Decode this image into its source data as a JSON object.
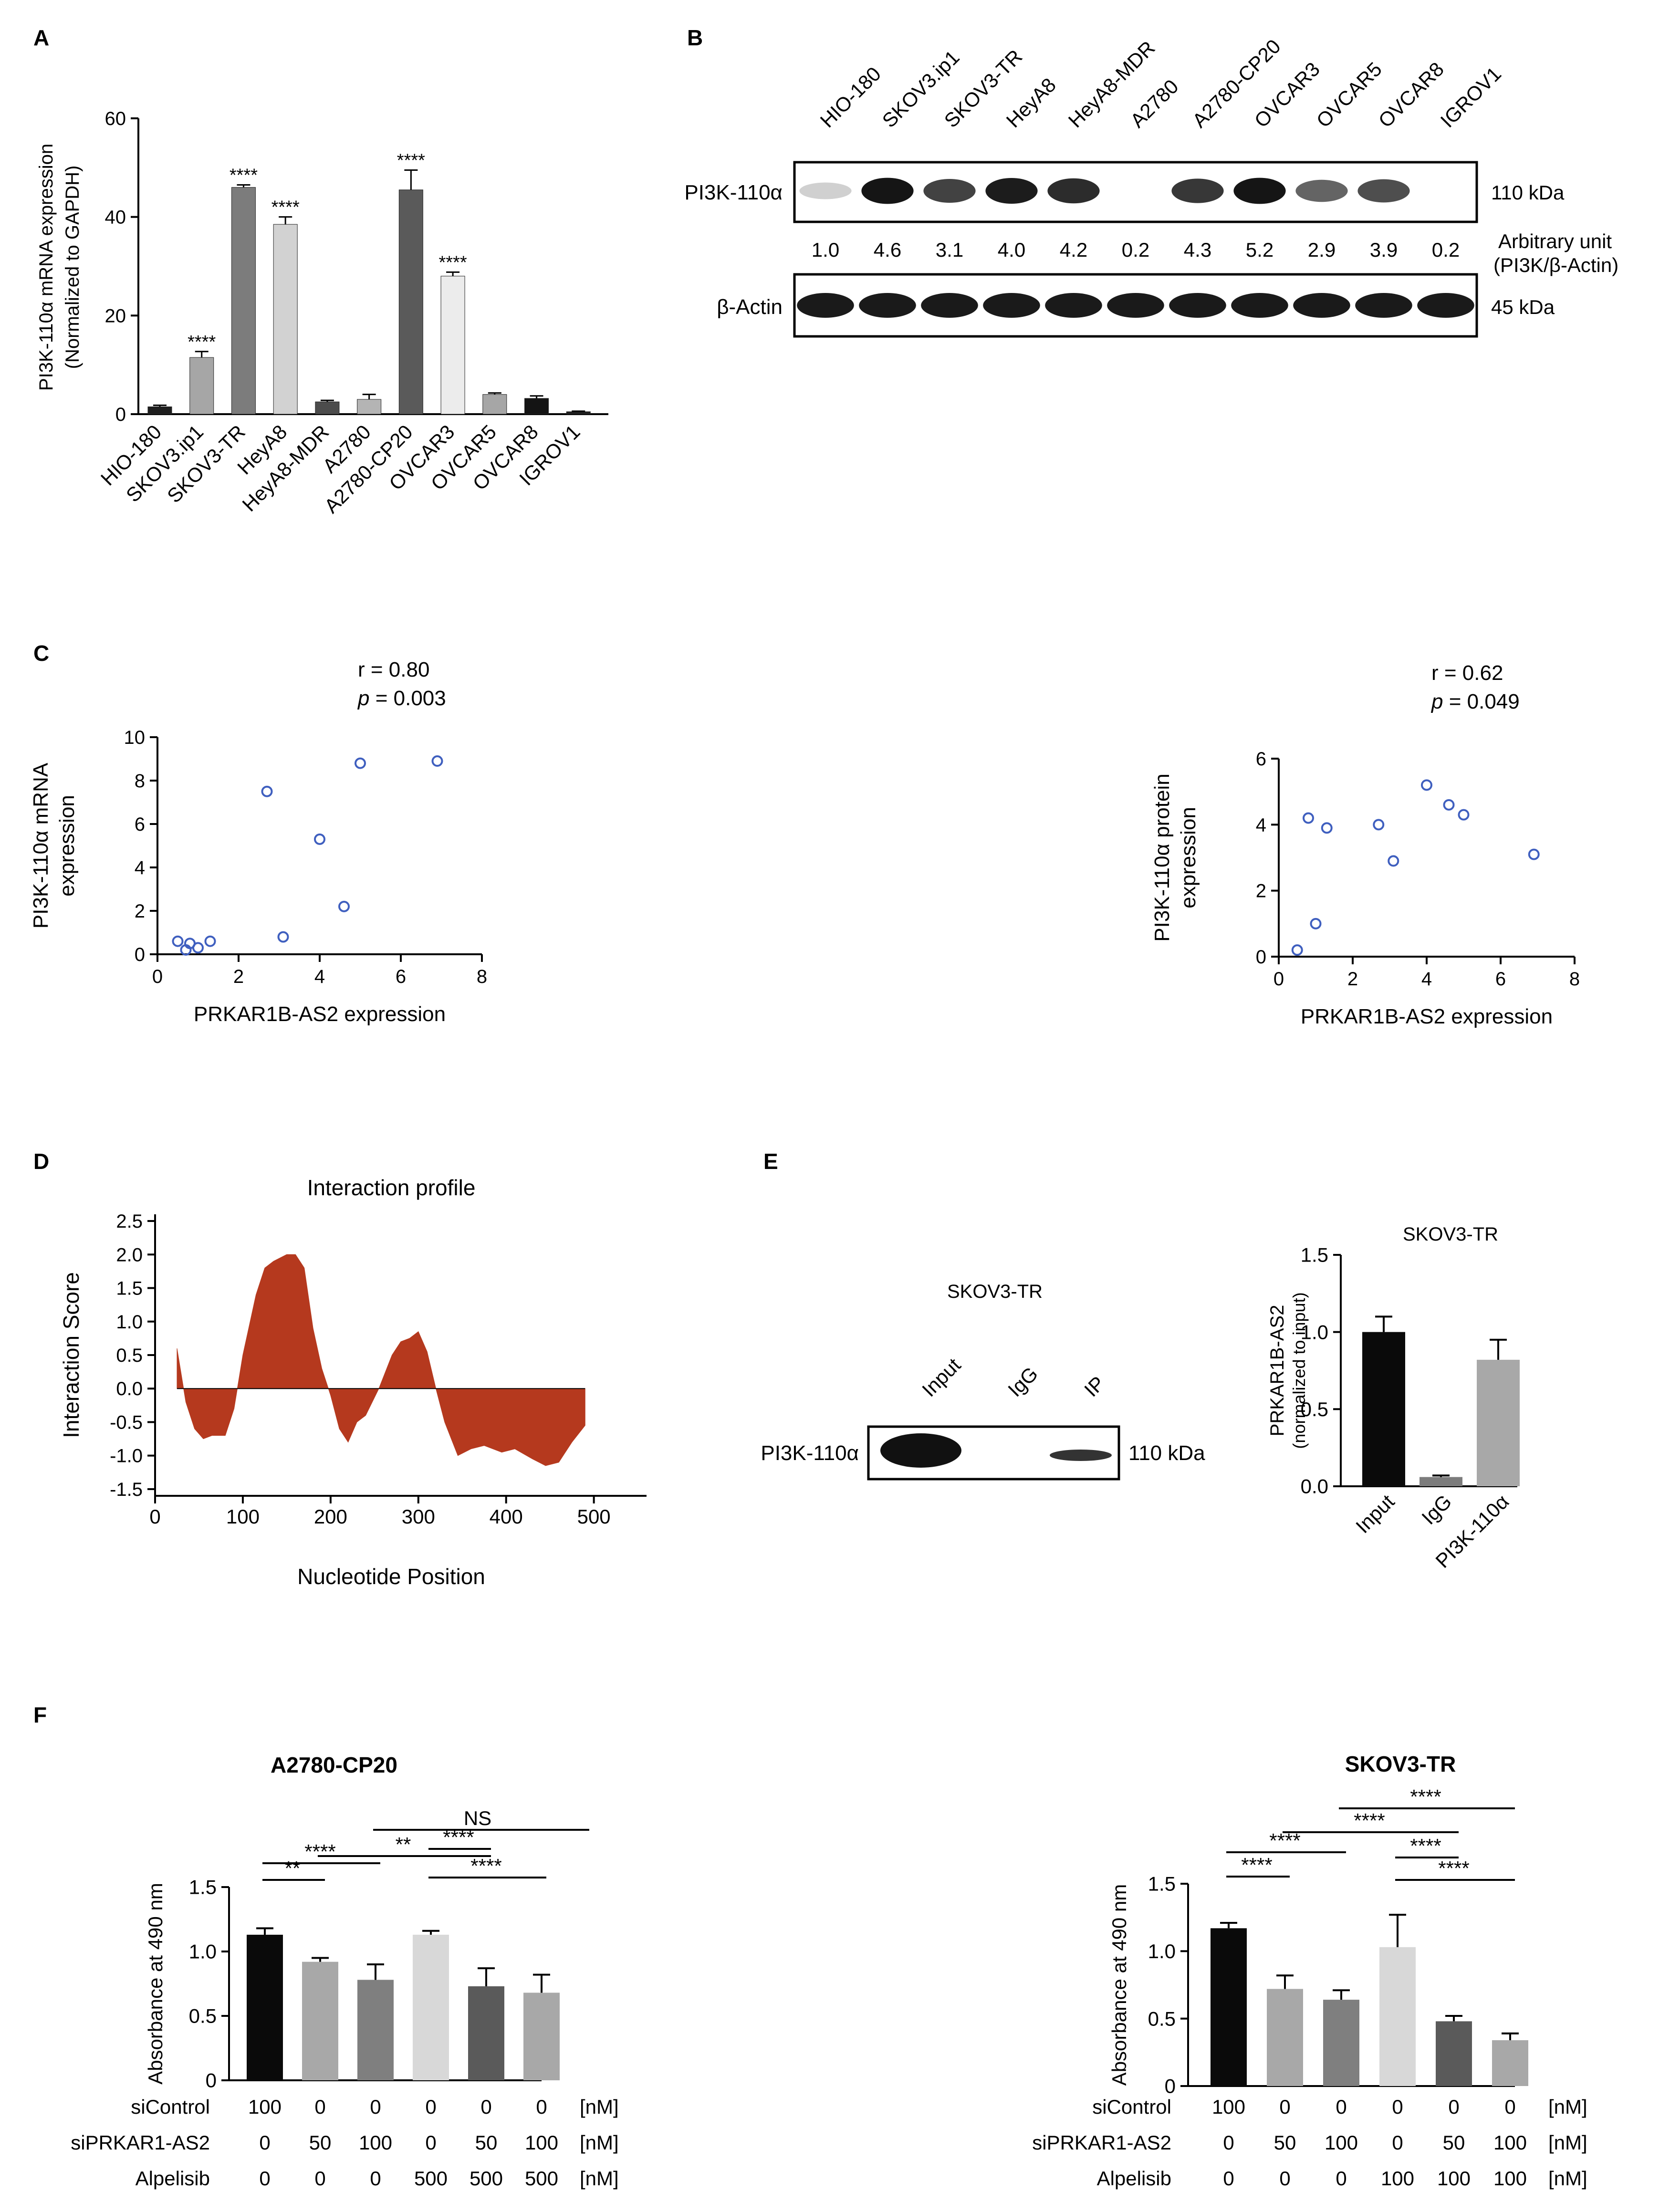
{
  "panels": {
    "A": {
      "letter": "A"
    },
    "B": {
      "letter": "B",
      "row1_label": "PI3K-110α",
      "row2_label": "β-Actin",
      "size1": "110 kDa",
      "size2": "45 kDa",
      "unit_label_1": "Arbitrary unit",
      "unit_label_2": "(PI3K/β-Actin)",
      "lanes": [
        "HIO-180",
        "SKOV3.ip1",
        "SKOV3-TR",
        "HeyA8",
        "HeyA8-MDR",
        "A2780",
        "A2780-CP20",
        "OVCAR3",
        "OVCAR5",
        "OVCAR8",
        "IGROV1"
      ],
      "ratios": [
        "1.0",
        "4.6",
        "3.1",
        "4.0",
        "4.2",
        "0.2",
        "4.3",
        "5.2",
        "2.9",
        "3.9",
        "0.2"
      ],
      "band_intensity": [
        0.12,
        0.95,
        0.75,
        0.92,
        0.85,
        0.0,
        0.8,
        0.95,
        0.6,
        0.7,
        0.0
      ]
    },
    "C": {
      "letter": "C"
    },
    "D": {
      "letter": "D"
    },
    "E": {
      "letter": "E",
      "blot_title": "SKOV3-TR",
      "lanes": [
        "Input",
        "IgG",
        "IP"
      ],
      "row_label": "PI3K-110α",
      "size": "110 kDa"
    },
    "F": {
      "letter": "F",
      "row_labels": [
        "siControl",
        "siPRKAR1-AS2",
        "Alpelisib"
      ],
      "units": "[nM]",
      "left_rows": [
        [
          "100",
          "0",
          "0",
          "0",
          "0",
          "0"
        ],
        [
          "0",
          "50",
          "100",
          "0",
          "50",
          "100"
        ],
        [
          "0",
          "0",
          "0",
          "500",
          "500",
          "500"
        ]
      ],
      "right_rows": [
        [
          "100",
          "0",
          "0",
          "0",
          "0",
          "0"
        ],
        [
          "0",
          "50",
          "100",
          "0",
          "50",
          "100"
        ],
        [
          "0",
          "0",
          "0",
          "100",
          "100",
          "100"
        ]
      ]
    }
  },
  "chart_data": [
    {
      "id": "A",
      "type": "bar",
      "title": "",
      "xlabel": "",
      "ylabel": "PI3K-110α mRNA expression",
      "ylabel2": "(Normalized to GAPDH)",
      "categories": [
        "HIO-180",
        "SKOV3.ip1",
        "SKOV3-TR",
        "HeyA8",
        "HeyA8-MDR",
        "A2780",
        "A2780-CP20",
        "OVCAR3",
        "OVCAR5",
        "OVCAR8",
        "IGROV1"
      ],
      "values": [
        1.5,
        11.5,
        46,
        38.5,
        2.5,
        3,
        45.5,
        28,
        4,
        3.2,
        0.5
      ],
      "errors": [
        0.3,
        1.2,
        0.5,
        1.5,
        0.3,
        1.0,
        4.0,
        0.8,
        0.3,
        0.5,
        0.1
      ],
      "annotations": [
        "",
        "****",
        "****",
        "****",
        "",
        "",
        "****",
        "****",
        "",
        "",
        ""
      ],
      "colors": [
        "#1e1e1e",
        "#a6a6a6",
        "#7c7c7c",
        "#d2d2d2",
        "#4c4c4c",
        "#b4b4b4",
        "#5a5a5a",
        "#ececec",
        "#a6a6a6",
        "#141414",
        "#1e1e1e"
      ],
      "yticks": [
        "0",
        "20",
        "40",
        "60"
      ],
      "ylim": [
        0,
        60
      ]
    },
    {
      "id": "C1",
      "type": "scatter",
      "title": "",
      "annot_r": "r = 0.80",
      "annot_p_label": "p",
      "annot_p_value": " = 0.003",
      "xlabel": "PRKAR1B-AS2 expression",
      "ylabel": "PI3K-110α mRNA",
      "ylabel2": "expression",
      "x": [
        0.5,
        0.7,
        0.8,
        1.0,
        1.3,
        2.7,
        3.1,
        4.0,
        4.6,
        5.0,
        6.9
      ],
      "y": [
        0.6,
        0.2,
        0.5,
        0.3,
        0.6,
        7.5,
        0.8,
        5.3,
        2.2,
        8.8,
        8.9
      ],
      "xticks": [
        "0",
        "2",
        "4",
        "6",
        "8"
      ],
      "yticks": [
        "0",
        "2",
        "4",
        "6",
        "8",
        "10"
      ],
      "xlim": [
        0,
        8
      ],
      "ylim": [
        0,
        10
      ]
    },
    {
      "id": "C2",
      "type": "scatter",
      "title": "",
      "annot_r": "r = 0.62",
      "annot_p_label": "p",
      "annot_p_value": " = 0.049",
      "xlabel": "PRKAR1B-AS2 expression",
      "ylabel": "PI3K-110α protein",
      "ylabel2": "expression",
      "x": [
        0.5,
        0.8,
        1.0,
        1.3,
        2.7,
        3.1,
        4.0,
        4.6,
        5.0,
        6.9
      ],
      "y": [
        0.2,
        4.2,
        1.0,
        3.9,
        4.0,
        2.9,
        5.2,
        4.6,
        4.3,
        3.1
      ],
      "xticks": [
        "0",
        "2",
        "4",
        "6",
        "8"
      ],
      "yticks": [
        "0",
        "2",
        "4",
        "6"
      ],
      "xlim": [
        0,
        8
      ],
      "ylim": [
        0,
        6
      ]
    },
    {
      "id": "D",
      "type": "area",
      "title": "Interaction profile",
      "xlabel": "Nucleotide Position",
      "ylabel": "Interaction Score",
      "x": [
        25,
        35,
        45,
        55,
        65,
        80,
        90,
        100,
        115,
        125,
        135,
        150,
        160,
        170,
        180,
        190,
        200,
        210,
        220,
        230,
        240,
        255,
        270,
        280,
        290,
        300,
        310,
        320,
        330,
        345,
        360,
        375,
        395,
        410,
        430,
        445,
        460,
        475,
        490
      ],
      "y": [
        0.6,
        -0.2,
        -0.6,
        -0.75,
        -0.7,
        -0.7,
        -0.3,
        0.5,
        1.4,
        1.8,
        1.9,
        2.0,
        2.0,
        1.8,
        0.9,
        0.3,
        -0.1,
        -0.6,
        -0.8,
        -0.5,
        -0.4,
        0.0,
        0.5,
        0.7,
        0.75,
        0.85,
        0.55,
        0.0,
        -0.5,
        -1.0,
        -0.9,
        -0.85,
        -0.95,
        -0.9,
        -1.05,
        -1.15,
        -1.1,
        -0.8,
        -0.55
      ],
      "color": "#b5391e",
      "xticks": [
        "0",
        "100",
        "200",
        "300",
        "400",
        "500"
      ],
      "yticks": [
        "-1.5",
        "-1.0",
        "-0.5",
        "0.0",
        "0.5",
        "1.0",
        "1.5",
        "2.0",
        "2.5"
      ],
      "xlim": [
        0,
        560
      ],
      "ylim": [
        -1.6,
        2.6
      ]
    },
    {
      "id": "E",
      "type": "bar",
      "title": "SKOV3-TR",
      "ylabel": "PRKAR1B-AS2",
      "ylabel2": "(normalized to input)",
      "categories": [
        "Input",
        "IgG",
        "PI3K-110α"
      ],
      "values": [
        1.0,
        0.06,
        0.82
      ],
      "errors": [
        0.1,
        0.01,
        0.13
      ],
      "colors": [
        "#0a0a0a",
        "#7c7c7c",
        "#a8a8a8"
      ],
      "yticks": [
        "0.0",
        "0.5",
        "1.0",
        "1.5"
      ],
      "ylim": [
        0,
        1.5
      ]
    },
    {
      "id": "F1",
      "type": "bar",
      "title": "A2780-CP20",
      "ylabel": "Absorbance at 490 nm",
      "categories": [
        "1",
        "2",
        "3",
        "4",
        "5",
        "6"
      ],
      "values": [
        1.13,
        0.92,
        0.78,
        1.13,
        0.73,
        0.68
      ],
      "errors": [
        0.05,
        0.03,
        0.12,
        0.03,
        0.14,
        0.14
      ],
      "colors": [
        "#0a0a0a",
        "#a8a8a8",
        "#7f7f7f",
        "#d8d8d8",
        "#5a5a5a",
        "#a8a8a8"
      ],
      "yticks": [
        "0",
        "0.5",
        "1.0",
        "1.5"
      ],
      "ylim": [
        0,
        1.5
      ],
      "brackets": [
        {
          "from": 0,
          "to": 1,
          "label": "**"
        },
        {
          "from": 0,
          "to": 2,
          "label": "****"
        },
        {
          "from": 1,
          "to": 4,
          "label": "**"
        },
        {
          "from": 2,
          "to": 5,
          "label": "NS"
        },
        {
          "from": 3,
          "to": 4,
          "label": "****"
        },
        {
          "from": 3,
          "to": 5,
          "label": "****"
        }
      ]
    },
    {
      "id": "F2",
      "type": "bar",
      "title": "SKOV3-TR",
      "ylabel": "Absorbance at 490 nm",
      "categories": [
        "1",
        "2",
        "3",
        "4",
        "5",
        "6"
      ],
      "values": [
        1.17,
        0.72,
        0.64,
        1.03,
        0.48,
        0.34
      ],
      "errors": [
        0.04,
        0.1,
        0.07,
        0.24,
        0.04,
        0.05
      ],
      "colors": [
        "#0a0a0a",
        "#a8a8a8",
        "#7f7f7f",
        "#d8d8d8",
        "#5a5a5a",
        "#a8a8a8"
      ],
      "yticks": [
        "0",
        "0.5",
        "1.0",
        "1.5"
      ],
      "ylim": [
        0,
        1.5
      ],
      "brackets": [
        {
          "from": 0,
          "to": 1,
          "label": "****"
        },
        {
          "from": 0,
          "to": 2,
          "label": "****"
        },
        {
          "from": 1,
          "to": 4,
          "label": "****"
        },
        {
          "from": 2,
          "to": 5,
          "label": "****"
        },
        {
          "from": 3,
          "to": 4,
          "label": "****"
        },
        {
          "from": 3,
          "to": 5,
          "label": "****"
        }
      ]
    }
  ]
}
